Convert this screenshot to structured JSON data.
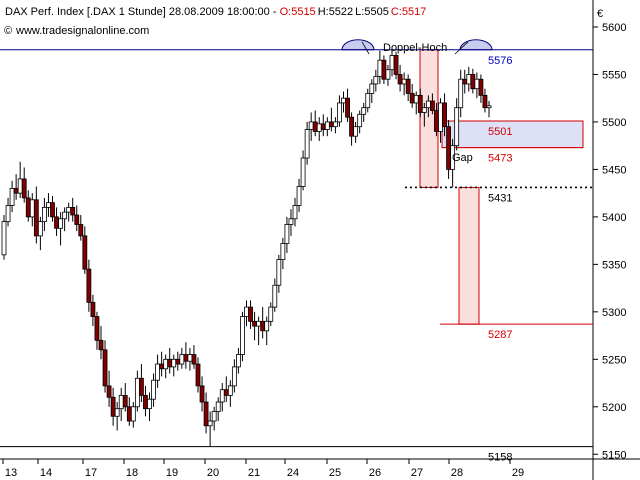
{
  "header": {
    "title": "DAX Perf. Index [.DAX  1 Stunde] 28.08.2009 18:00:00 - ",
    "open_label": "O:",
    "open": "5515",
    "high_label": "H:",
    "high": "5522",
    "low_label": "L:",
    "low": "5505",
    "close_label": "C:",
    "close": "5517",
    "source": "www.tradesignalonline.com",
    "currency": "€"
  },
  "colors": {
    "up_body": "#ffffff",
    "down_body": "#800000",
    "candle_outline": "#000000",
    "resistance_line": "#000080",
    "gap_fill": "#dde0f7",
    "target_fill": "#fbdede",
    "target_stroke": "#d40000",
    "level_red": "#d40000",
    "level_blue": "#0000cc",
    "axis": "#000000"
  },
  "chart_data": {
    "type": "candlestick",
    "title": "DAX Perf. Index [.DAX  1 Stunde]",
    "ylim": [
      5145,
      5620
    ],
    "y_ticks": [
      5150,
      5200,
      5250,
      5300,
      5350,
      5400,
      5450,
      5500,
      5550,
      5600
    ],
    "x_ticks": [
      "13",
      "14",
      "17",
      "18",
      "19",
      "20",
      "21",
      "24",
      "25",
      "26",
      "27",
      "28",
      "29"
    ],
    "candles": [
      {
        "o": 5360,
        "h": 5402,
        "l": 5355,
        "c": 5395
      },
      {
        "o": 5395,
        "h": 5420,
        "l": 5390,
        "c": 5412
      },
      {
        "o": 5412,
        "h": 5438,
        "l": 5405,
        "c": 5430
      },
      {
        "o": 5430,
        "h": 5445,
        "l": 5418,
        "c": 5425
      },
      {
        "o": 5425,
        "h": 5458,
        "l": 5420,
        "c": 5440
      },
      {
        "o": 5440,
        "h": 5452,
        "l": 5415,
        "c": 5420
      },
      {
        "o": 5420,
        "h": 5428,
        "l": 5395,
        "c": 5400
      },
      {
        "o": 5400,
        "h": 5425,
        "l": 5390,
        "c": 5418
      },
      {
        "o": 5418,
        "h": 5432,
        "l": 5372,
        "c": 5380
      },
      {
        "o": 5380,
        "h": 5400,
        "l": 5365,
        "c": 5395
      },
      {
        "o": 5395,
        "h": 5420,
        "l": 5385,
        "c": 5410
      },
      {
        "o": 5410,
        "h": 5425,
        "l": 5400,
        "c": 5415
      },
      {
        "o": 5415,
        "h": 5422,
        "l": 5395,
        "c": 5400
      },
      {
        "o": 5400,
        "h": 5410,
        "l": 5380,
        "c": 5388
      },
      {
        "o": 5388,
        "h": 5405,
        "l": 5370,
        "c": 5398
      },
      {
        "o": 5398,
        "h": 5410,
        "l": 5385,
        "c": 5405
      },
      {
        "o": 5405,
        "h": 5415,
        "l": 5395,
        "c": 5410
      },
      {
        "o": 5410,
        "h": 5420,
        "l": 5395,
        "c": 5402
      },
      {
        "o": 5402,
        "h": 5412,
        "l": 5385,
        "c": 5392
      },
      {
        "o": 5392,
        "h": 5402,
        "l": 5375,
        "c": 5380
      },
      {
        "o": 5380,
        "h": 5390,
        "l": 5340,
        "c": 5345
      },
      {
        "o": 5345,
        "h": 5355,
        "l": 5300,
        "c": 5310
      },
      {
        "o": 5310,
        "h": 5318,
        "l": 5285,
        "c": 5295
      },
      {
        "o": 5295,
        "h": 5300,
        "l": 5260,
        "c": 5270
      },
      {
        "o": 5270,
        "h": 5285,
        "l": 5250,
        "c": 5260
      },
      {
        "o": 5260,
        "h": 5270,
        "l": 5215,
        "c": 5222
      },
      {
        "o": 5222,
        "h": 5238,
        "l": 5200,
        "c": 5210
      },
      {
        "o": 5210,
        "h": 5220,
        "l": 5180,
        "c": 5190
      },
      {
        "o": 5190,
        "h": 5205,
        "l": 5175,
        "c": 5198
      },
      {
        "o": 5198,
        "h": 5220,
        "l": 5185,
        "c": 5212
      },
      {
        "o": 5212,
        "h": 5225,
        "l": 5195,
        "c": 5200
      },
      {
        "o": 5200,
        "h": 5210,
        "l": 5180,
        "c": 5185
      },
      {
        "o": 5185,
        "h": 5205,
        "l": 5178,
        "c": 5200
      },
      {
        "o": 5200,
        "h": 5238,
        "l": 5195,
        "c": 5230
      },
      {
        "o": 5230,
        "h": 5245,
        "l": 5205,
        "c": 5212
      },
      {
        "o": 5212,
        "h": 5222,
        "l": 5190,
        "c": 5198
      },
      {
        "o": 5198,
        "h": 5215,
        "l": 5185,
        "c": 5208
      },
      {
        "o": 5208,
        "h": 5235,
        "l": 5200,
        "c": 5228
      },
      {
        "o": 5228,
        "h": 5255,
        "l": 5220,
        "c": 5245
      },
      {
        "o": 5245,
        "h": 5258,
        "l": 5232,
        "c": 5240
      },
      {
        "o": 5240,
        "h": 5255,
        "l": 5230,
        "c": 5250
      },
      {
        "o": 5250,
        "h": 5262,
        "l": 5235,
        "c": 5242
      },
      {
        "o": 5242,
        "h": 5255,
        "l": 5232,
        "c": 5250
      },
      {
        "o": 5250,
        "h": 5258,
        "l": 5238,
        "c": 5245
      },
      {
        "o": 5245,
        "h": 5262,
        "l": 5240,
        "c": 5255
      },
      {
        "o": 5255,
        "h": 5268,
        "l": 5240,
        "c": 5248
      },
      {
        "o": 5248,
        "h": 5262,
        "l": 5238,
        "c": 5255
      },
      {
        "o": 5255,
        "h": 5265,
        "l": 5240,
        "c": 5245
      },
      {
        "o": 5245,
        "h": 5252,
        "l": 5215,
        "c": 5222
      },
      {
        "o": 5222,
        "h": 5232,
        "l": 5195,
        "c": 5205
      },
      {
        "o": 5205,
        "h": 5215,
        "l": 5172,
        "c": 5180
      },
      {
        "o": 5180,
        "h": 5195,
        "l": 5158,
        "c": 5185
      },
      {
        "o": 5185,
        "h": 5200,
        "l": 5175,
        "c": 5195
      },
      {
        "o": 5195,
        "h": 5210,
        "l": 5185,
        "c": 5205
      },
      {
        "o": 5205,
        "h": 5225,
        "l": 5195,
        "c": 5218
      },
      {
        "o": 5218,
        "h": 5232,
        "l": 5205,
        "c": 5212
      },
      {
        "o": 5212,
        "h": 5228,
        "l": 5200,
        "c": 5222
      },
      {
        "o": 5222,
        "h": 5250,
        "l": 5215,
        "c": 5242
      },
      {
        "o": 5242,
        "h": 5262,
        "l": 5235,
        "c": 5255
      },
      {
        "o": 5255,
        "h": 5300,
        "l": 5248,
        "c": 5295
      },
      {
        "o": 5295,
        "h": 5312,
        "l": 5285,
        "c": 5305
      },
      {
        "o": 5305,
        "h": 5312,
        "l": 5282,
        "c": 5290
      },
      {
        "o": 5290,
        "h": 5300,
        "l": 5270,
        "c": 5285
      },
      {
        "o": 5285,
        "h": 5295,
        "l": 5265,
        "c": 5290
      },
      {
        "o": 5290,
        "h": 5305,
        "l": 5272,
        "c": 5280
      },
      {
        "o": 5280,
        "h": 5295,
        "l": 5265,
        "c": 5290
      },
      {
        "o": 5290,
        "h": 5310,
        "l": 5285,
        "c": 5305
      },
      {
        "o": 5305,
        "h": 5335,
        "l": 5300,
        "c": 5328
      },
      {
        "o": 5328,
        "h": 5360,
        "l": 5320,
        "c": 5355
      },
      {
        "o": 5355,
        "h": 5378,
        "l": 5345,
        "c": 5372
      },
      {
        "o": 5372,
        "h": 5400,
        "l": 5362,
        "c": 5392
      },
      {
        "o": 5392,
        "h": 5408,
        "l": 5380,
        "c": 5398
      },
      {
        "o": 5398,
        "h": 5420,
        "l": 5390,
        "c": 5412
      },
      {
        "o": 5412,
        "h": 5440,
        "l": 5405,
        "c": 5432
      },
      {
        "o": 5432,
        "h": 5470,
        "l": 5428,
        "c": 5462
      },
      {
        "o": 5462,
        "h": 5500,
        "l": 5455,
        "c": 5492
      },
      {
        "o": 5492,
        "h": 5510,
        "l": 5480,
        "c": 5500
      },
      {
        "o": 5500,
        "h": 5512,
        "l": 5485,
        "c": 5490
      },
      {
        "o": 5490,
        "h": 5505,
        "l": 5480,
        "c": 5498
      },
      {
        "o": 5498,
        "h": 5508,
        "l": 5485,
        "c": 5492
      },
      {
        "o": 5492,
        "h": 5505,
        "l": 5485,
        "c": 5500
      },
      {
        "o": 5500,
        "h": 5515,
        "l": 5490,
        "c": 5495
      },
      {
        "o": 5495,
        "h": 5505,
        "l": 5488,
        "c": 5500
      },
      {
        "o": 5500,
        "h": 5528,
        "l": 5495,
        "c": 5520
      },
      {
        "o": 5520,
        "h": 5532,
        "l": 5510,
        "c": 5525
      },
      {
        "o": 5525,
        "h": 5535,
        "l": 5500,
        "c": 5505
      },
      {
        "o": 5505,
        "h": 5510,
        "l": 5475,
        "c": 5485
      },
      {
        "o": 5485,
        "h": 5500,
        "l": 5478,
        "c": 5495
      },
      {
        "o": 5495,
        "h": 5512,
        "l": 5488,
        "c": 5508
      },
      {
        "o": 5508,
        "h": 5520,
        "l": 5500,
        "c": 5515
      },
      {
        "o": 5515,
        "h": 5535,
        "l": 5510,
        "c": 5530
      },
      {
        "o": 5530,
        "h": 5545,
        "l": 5520,
        "c": 5540
      },
      {
        "o": 5540,
        "h": 5555,
        "l": 5532,
        "c": 5548
      },
      {
        "o": 5548,
        "h": 5575,
        "l": 5540,
        "c": 5565
      },
      {
        "o": 5565,
        "h": 5570,
        "l": 5540,
        "c": 5545
      },
      {
        "o": 5545,
        "h": 5560,
        "l": 5538,
        "c": 5555
      },
      {
        "o": 5555,
        "h": 5576,
        "l": 5548,
        "c": 5570
      },
      {
        "o": 5570,
        "h": 5574,
        "l": 5545,
        "c": 5550
      },
      {
        "o": 5550,
        "h": 5560,
        "l": 5532,
        "c": 5540
      },
      {
        "o": 5540,
        "h": 5552,
        "l": 5528,
        "c": 5545
      },
      {
        "o": 5545,
        "h": 5550,
        "l": 5522,
        "c": 5530
      },
      {
        "o": 5530,
        "h": 5540,
        "l": 5515,
        "c": 5520
      },
      {
        "o": 5520,
        "h": 5532,
        "l": 5508,
        "c": 5528
      },
      {
        "o": 5528,
        "h": 5535,
        "l": 5505,
        "c": 5510
      },
      {
        "o": 5510,
        "h": 5520,
        "l": 5495,
        "c": 5515
      },
      {
        "o": 5515,
        "h": 5528,
        "l": 5505,
        "c": 5522
      },
      {
        "o": 5522,
        "h": 5530,
        "l": 5508,
        "c": 5512
      },
      {
        "o": 5512,
        "h": 5520,
        "l": 5485,
        "c": 5490
      },
      {
        "o": 5490,
        "h": 5525,
        "l": 5478,
        "c": 5520
      },
      {
        "o": 5520,
        "h": 5530,
        "l": 5485,
        "c": 5495
      },
      {
        "o": 5495,
        "h": 5502,
        "l": 5440,
        "c": 5450
      },
      {
        "o": 5450,
        "h": 5482,
        "l": 5431,
        "c": 5475
      },
      {
        "o": 5475,
        "h": 5525,
        "l": 5470,
        "c": 5515
      },
      {
        "o": 5515,
        "h": 5555,
        "l": 5505,
        "c": 5545
      },
      {
        "o": 5545,
        "h": 5555,
        "l": 5530,
        "c": 5540
      },
      {
        "o": 5540,
        "h": 5558,
        "l": 5532,
        "c": 5550
      },
      {
        "o": 5550,
        "h": 5556,
        "l": 5530,
        "c": 5535
      },
      {
        "o": 5535,
        "h": 5552,
        "l": 5525,
        "c": 5545
      },
      {
        "o": 5545,
        "h": 5550,
        "l": 5520,
        "c": 5528
      },
      {
        "o": 5528,
        "h": 5535,
        "l": 5510,
        "c": 5515
      },
      {
        "o": 5515,
        "h": 5522,
        "l": 5505,
        "c": 5517
      }
    ],
    "levels": [
      {
        "label": "5576",
        "value": 5576,
        "color": "blue"
      },
      {
        "label": "5501",
        "value": 5501,
        "color": "red"
      },
      {
        "label": "5473",
        "value": 5473,
        "color": "red"
      },
      {
        "label": "5431",
        "value": 5431,
        "color": "black"
      },
      {
        "label": "5287",
        "value": 5287,
        "color": "red"
      },
      {
        "label": "5158",
        "value": 5158,
        "color": "black"
      }
    ],
    "annotations": {
      "pattern_label": "Doppel-Hoch",
      "gap_label": "Gap",
      "gap_zone": [
        5473,
        5501
      ],
      "target_zone": [
        5287,
        5431
      ],
      "breakout_zone": [
        5431,
        5576
      ]
    }
  }
}
